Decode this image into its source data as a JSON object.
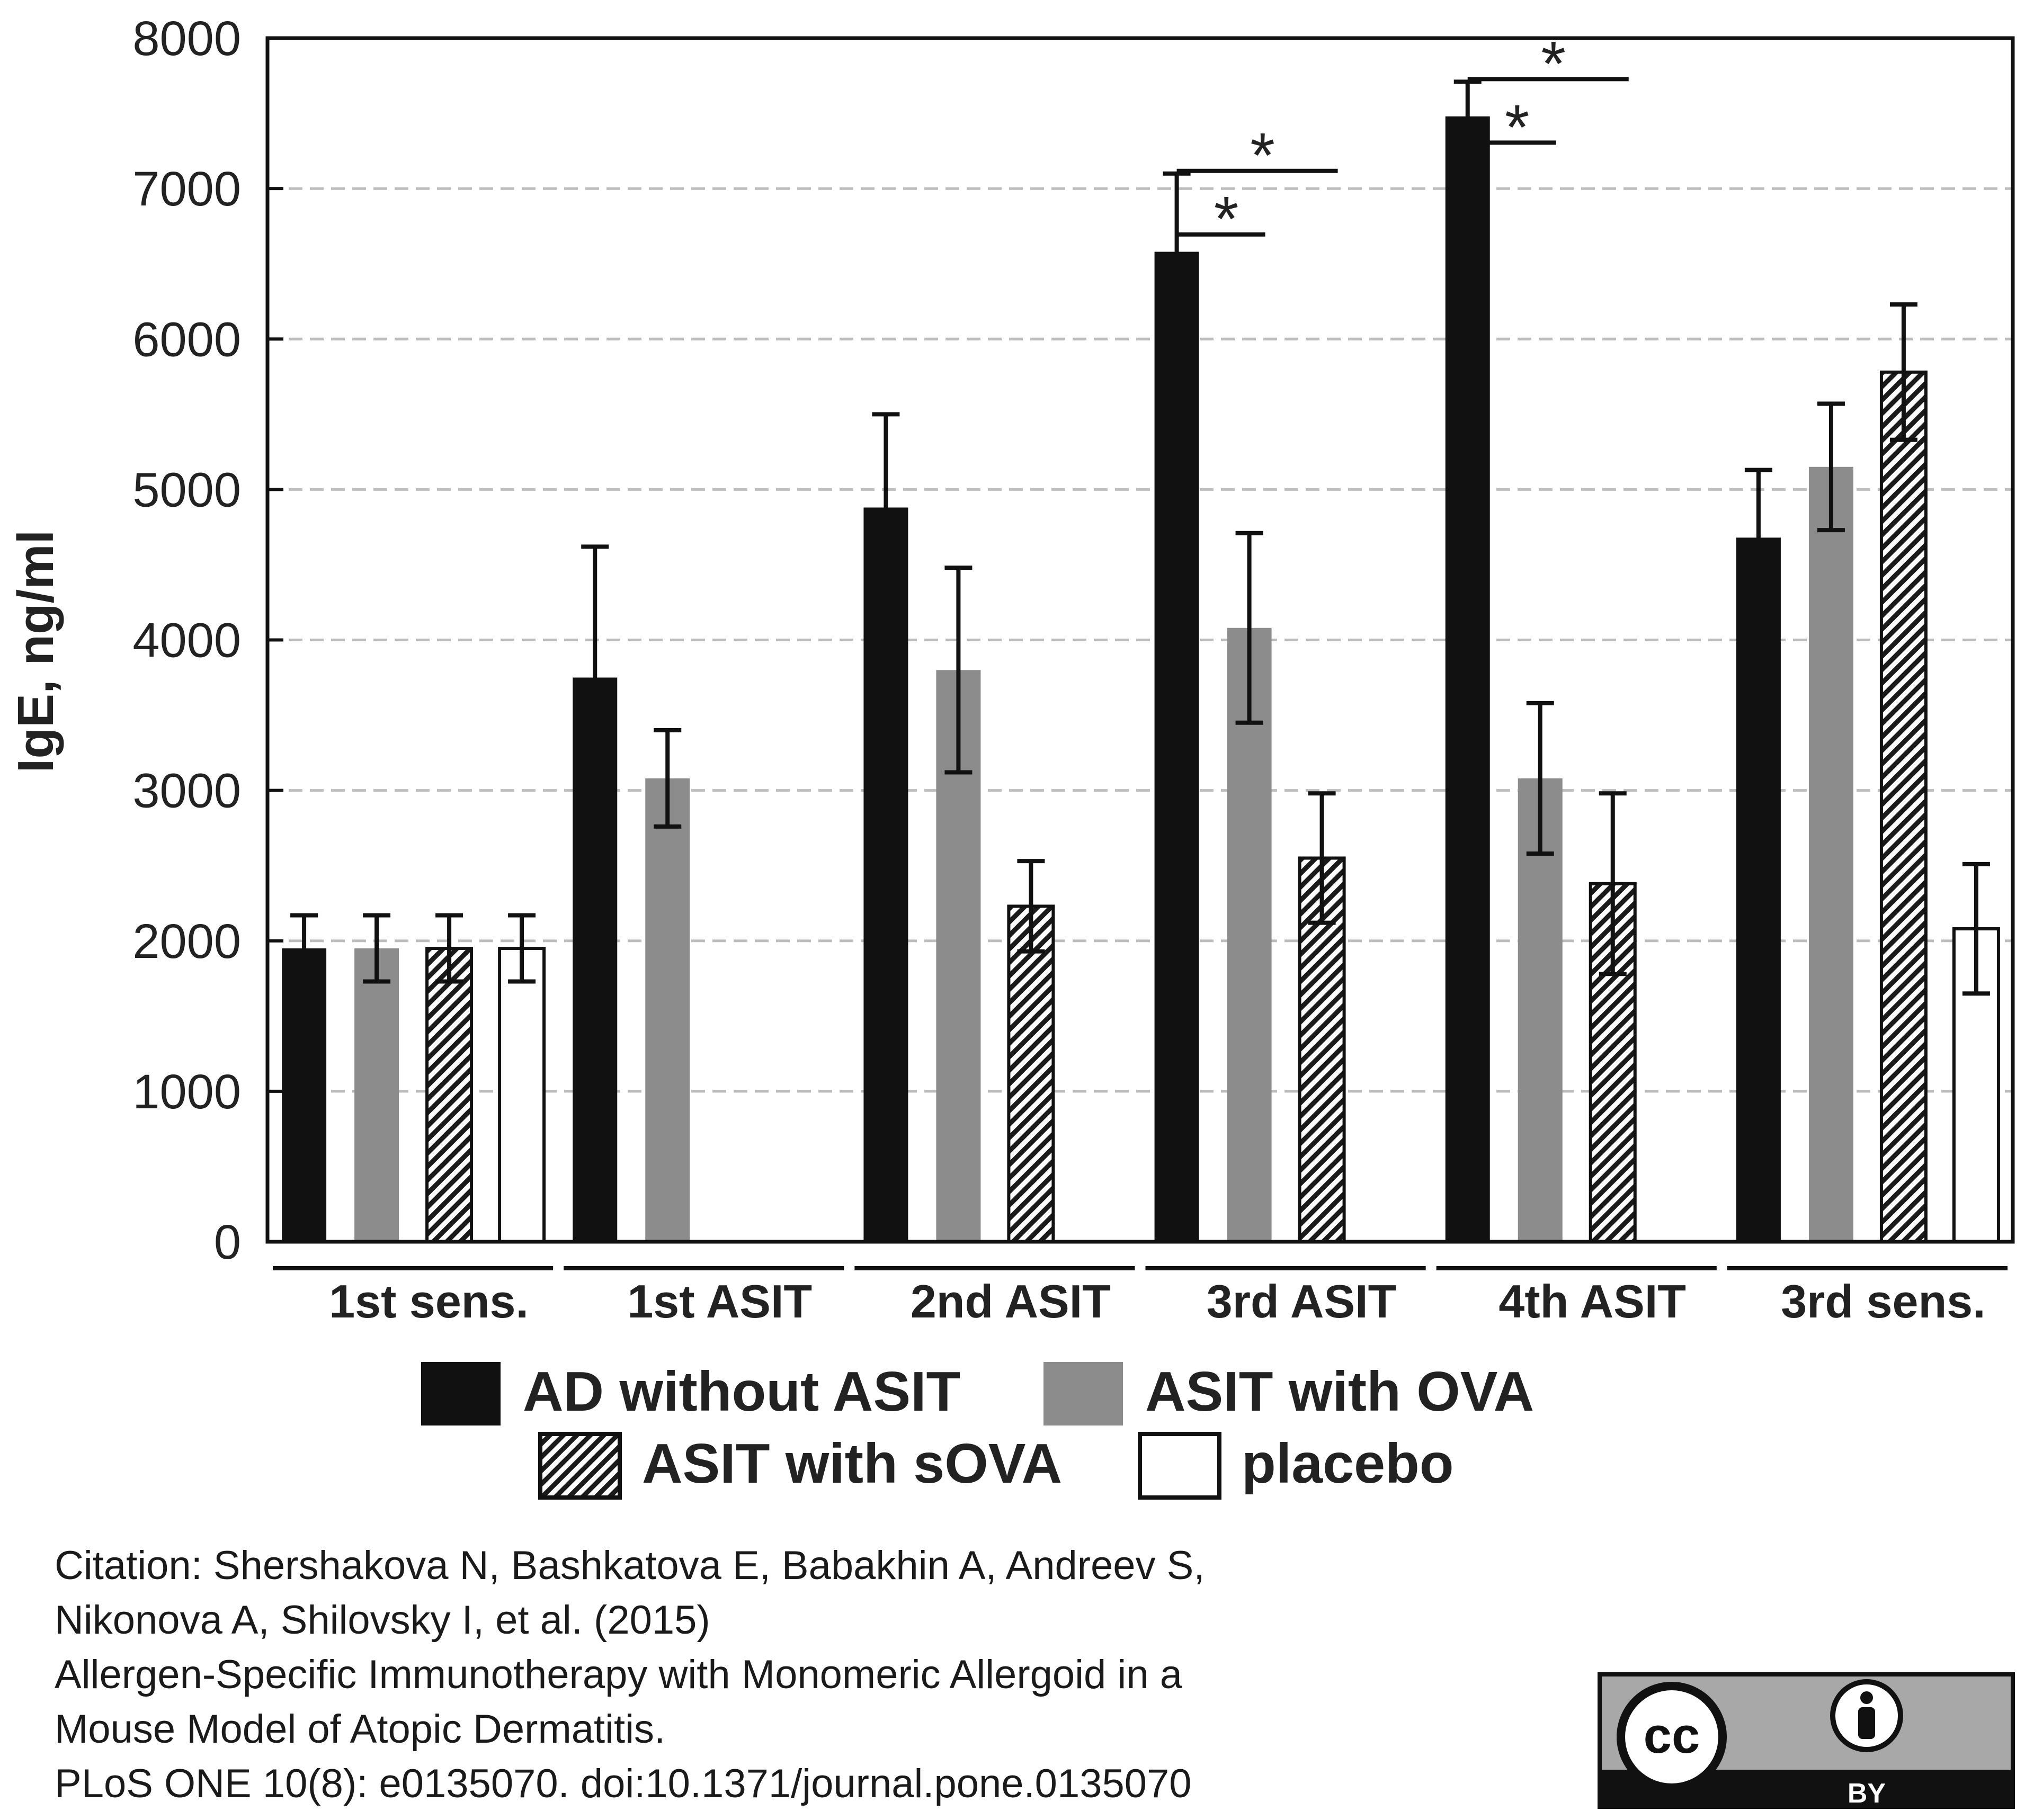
{
  "chart_data": {
    "type": "bar",
    "title": "",
    "xlabel": "",
    "ylabel": "IgE, ng/ml",
    "ylim": [
      0,
      8000
    ],
    "yticks": [
      "0",
      "1000",
      "2000",
      "3000",
      "4000",
      "5000",
      "6000",
      "7000",
      "8000"
    ],
    "grid": "horizontal dashed",
    "categories": [
      "1st sens.",
      "1st ASIT",
      "2nd ASIT",
      "3rd ASIT",
      "4th ASIT",
      "3rd sens."
    ],
    "series": [
      {
        "name": "AD without ASIT",
        "fill": "solid-black",
        "values": [
          1950,
          3750,
          4880,
          6580,
          7480,
          4680
        ],
        "errors": [
          220,
          870,
          620,
          520,
          230,
          450
        ]
      },
      {
        "name": "ASIT with OVA",
        "fill": "solid-gray",
        "values": [
          1950,
          3080,
          3800,
          4080,
          3080,
          5150
        ],
        "errors": [
          220,
          320,
          680,
          630,
          500,
          420
        ]
      },
      {
        "name": "ASIT with sOVA",
        "fill": "hatched",
        "values": [
          1950,
          null,
          2230,
          2550,
          2380,
          5780
        ],
        "errors": [
          220,
          null,
          300,
          430,
          600,
          450
        ]
      },
      {
        "name": "placebo",
        "fill": "white",
        "values": [
          1950,
          null,
          null,
          null,
          null,
          2080
        ],
        "errors": [
          220,
          null,
          null,
          null,
          null,
          430
        ]
      }
    ],
    "annotations": [
      {
        "category": "3rd ASIT",
        "from_series": "AD without ASIT",
        "to_series": "ASIT with OVA",
        "label": "*"
      },
      {
        "category": "3rd ASIT",
        "from_series": "AD without ASIT",
        "to_series": "ASIT with sOVA",
        "label": "*"
      },
      {
        "category": "4th ASIT",
        "from_series": "AD without ASIT",
        "to_series": "ASIT with OVA",
        "label": "*"
      },
      {
        "category": "4th ASIT",
        "from_series": "AD without ASIT",
        "to_series": "ASIT with sOVA",
        "label": "*"
      }
    ],
    "legend": {
      "position": "bottom-center",
      "entries": [
        "AD without ASIT",
        "ASIT with OVA",
        "ASIT with sOVA",
        "placebo"
      ]
    }
  },
  "colors": {
    "black": "#111111",
    "gray": "#8c8c8c",
    "grid": "#bdbdbd",
    "white": "#ffffff"
  },
  "citation": {
    "line1": "Citation: Shershakova N, Bashkatova E, Babakhin A, Andreev S,",
    "line2": "Nikonova A, Shilovsky I, et al. (2015)",
    "line3": "Allergen-Specific Immunotherapy with Monomeric Allergoid in a",
    "line4": "Mouse Model of Atopic Dermatitis.",
    "line5": "PLoS ONE 10(8): e0135070. doi:10.1371/journal.pone.0135070"
  },
  "license_badge": {
    "cc_text": "cc",
    "by_text": "BY",
    "icon": "person-icon"
  }
}
